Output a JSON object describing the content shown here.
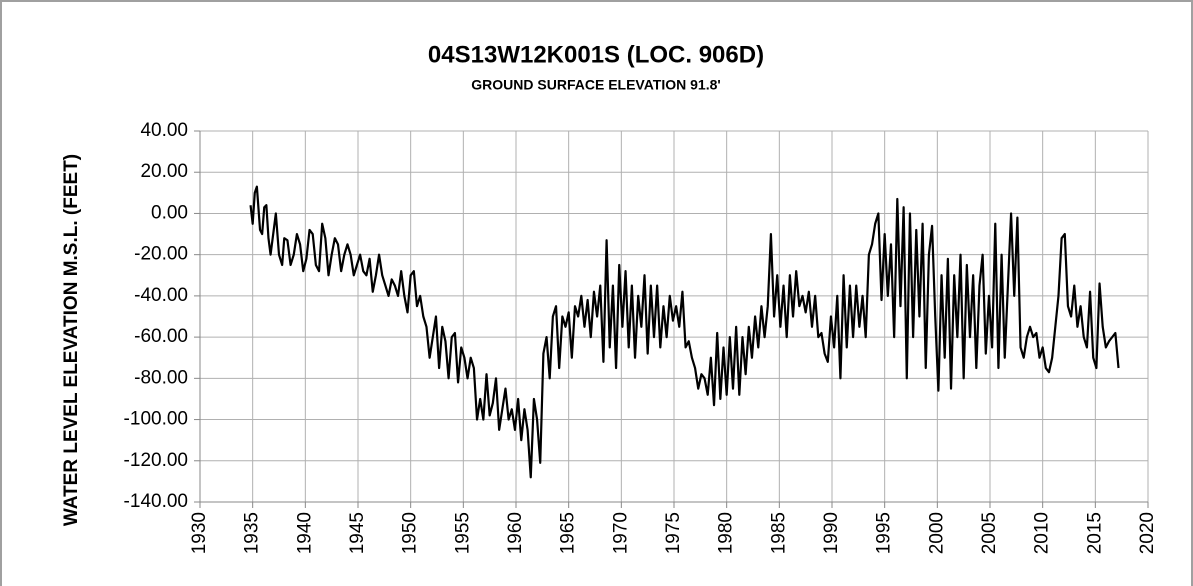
{
  "chart_data": {
    "type": "line",
    "title": "04S13W12K001S (LOC. 906D)",
    "subtitle": "GROUND SURFACE ELEVATION 91.8'",
    "y_label": "WATER LEVEL ELEVATION M.S.L. (FEET)",
    "color": "#000000",
    "grid": true,
    "xlim": [
      1930,
      2020
    ],
    "xticks": [
      1930,
      1935,
      1940,
      1945,
      1950,
      1955,
      1960,
      1965,
      1970,
      1975,
      1980,
      1985,
      1990,
      1995,
      2000,
      2005,
      2010,
      2015,
      2020
    ],
    "ylim": [
      -140,
      40
    ],
    "yticks": [
      {
        "value": -140,
        "label": "-140.00"
      },
      {
        "value": -120,
        "label": "-120.00"
      },
      {
        "value": -100,
        "label": "-100.00"
      },
      {
        "value": -80,
        "label": "-80.00"
      },
      {
        "value": -60,
        "label": "-60.00"
      },
      {
        "value": -40,
        "label": "-40.00"
      },
      {
        "value": -20,
        "label": "-20.00"
      },
      {
        "value": 0,
        "label": "0.00"
      },
      {
        "value": 20,
        "label": "20.00"
      },
      {
        "value": 40,
        "label": "40.00"
      }
    ],
    "x": [
      1934.8,
      1935.0,
      1935.2,
      1935.4,
      1935.7,
      1935.9,
      1936.1,
      1936.3,
      1936.5,
      1936.7,
      1937.0,
      1937.2,
      1937.5,
      1937.8,
      1938.0,
      1938.3,
      1938.6,
      1938.9,
      1939.2,
      1939.5,
      1939.8,
      1940.1,
      1940.4,
      1940.7,
      1941.0,
      1941.3,
      1941.6,
      1941.9,
      1942.2,
      1942.5,
      1942.8,
      1943.1,
      1943.4,
      1943.7,
      1944.0,
      1944.3,
      1944.6,
      1944.9,
      1945.2,
      1945.5,
      1945.8,
      1946.1,
      1946.4,
      1946.7,
      1947.0,
      1947.3,
      1947.6,
      1947.9,
      1948.2,
      1948.5,
      1948.8,
      1949.1,
      1949.4,
      1949.7,
      1950.0,
      1950.3,
      1950.6,
      1950.9,
      1951.2,
      1951.5,
      1951.8,
      1952.1,
      1952.4,
      1952.7,
      1953.0,
      1953.3,
      1953.6,
      1953.9,
      1954.2,
      1954.5,
      1954.8,
      1955.1,
      1955.4,
      1955.7,
      1956.0,
      1956.3,
      1956.6,
      1956.9,
      1957.2,
      1957.5,
      1957.8,
      1958.1,
      1958.4,
      1958.7,
      1959.0,
      1959.3,
      1959.6,
      1959.9,
      1960.2,
      1960.5,
      1960.8,
      1961.1,
      1961.4,
      1961.7,
      1962.0,
      1962.3,
      1962.6,
      1962.9,
      1963.2,
      1963.5,
      1963.8,
      1964.1,
      1964.4,
      1964.7,
      1965.0,
      1965.3,
      1965.6,
      1965.9,
      1966.2,
      1966.5,
      1966.8,
      1967.1,
      1967.4,
      1967.7,
      1968.0,
      1968.3,
      1968.6,
      1968.9,
      1969.2,
      1969.5,
      1969.8,
      1970.1,
      1970.4,
      1970.7,
      1971.0,
      1971.3,
      1971.6,
      1971.9,
      1972.2,
      1972.5,
      1972.8,
      1973.1,
      1973.4,
      1973.7,
      1974.0,
      1974.3,
      1974.6,
      1974.9,
      1975.2,
      1975.5,
      1975.8,
      1976.1,
      1976.4,
      1976.7,
      1977.0,
      1977.3,
      1977.6,
      1977.9,
      1978.2,
      1978.5,
      1978.8,
      1979.1,
      1979.4,
      1979.7,
      1980.0,
      1980.3,
      1980.6,
      1980.9,
      1981.2,
      1981.5,
      1981.8,
      1982.1,
      1982.4,
      1982.7,
      1983.0,
      1983.3,
      1983.6,
      1983.9,
      1984.2,
      1984.5,
      1984.8,
      1985.1,
      1985.4,
      1985.7,
      1986.0,
      1986.3,
      1986.6,
      1986.9,
      1987.2,
      1987.5,
      1987.8,
      1988.1,
      1988.4,
      1988.7,
      1989.0,
      1989.3,
      1989.6,
      1989.9,
      1990.2,
      1990.5,
      1990.8,
      1991.1,
      1991.4,
      1991.7,
      1992.0,
      1992.3,
      1992.6,
      1992.9,
      1993.2,
      1993.5,
      1993.8,
      1994.1,
      1994.4,
      1994.7,
      1995.0,
      1995.3,
      1995.6,
      1995.9,
      1996.2,
      1996.5,
      1996.8,
      1997.1,
      1997.4,
      1997.7,
      1998.0,
      1998.3,
      1998.6,
      1998.9,
      1999.2,
      1999.5,
      1999.8,
      2000.1,
      2000.4,
      2000.7,
      2001.0,
      2001.3,
      2001.6,
      2001.9,
      2002.2,
      2002.5,
      2002.8,
      2003.1,
      2003.4,
      2003.7,
      2004.0,
      2004.3,
      2004.6,
      2004.9,
      2005.2,
      2005.5,
      2005.8,
      2006.1,
      2006.4,
      2006.7,
      2007.0,
      2007.3,
      2007.6,
      2007.9,
      2008.2,
      2008.5,
      2008.8,
      2009.1,
      2009.4,
      2009.7,
      2010.0,
      2010.3,
      2010.6,
      2010.9,
      2011.2,
      2011.5,
      2011.8,
      2012.1,
      2012.4,
      2012.7,
      2013.0,
      2013.3,
      2013.6,
      2013.9,
      2014.2,
      2014.5,
      2014.8,
      2015.1,
      2015.4,
      2015.7,
      2016.0,
      2016.3,
      2016.6,
      2016.9,
      2017.2
    ],
    "values": [
      4,
      -5,
      10,
      13,
      -8,
      -10,
      3,
      4,
      -12,
      -20,
      -8,
      0,
      -20,
      -25,
      -12,
      -13,
      -25,
      -20,
      -10,
      -15,
      -28,
      -22,
      -8,
      -10,
      -25,
      -28,
      -5,
      -12,
      -30,
      -20,
      -12,
      -15,
      -28,
      -20,
      -15,
      -20,
      -30,
      -25,
      -20,
      -28,
      -30,
      -22,
      -38,
      -30,
      -20,
      -30,
      -35,
      -40,
      -32,
      -35,
      -40,
      -28,
      -40,
      -48,
      -30,
      -28,
      -45,
      -40,
      -50,
      -55,
      -70,
      -60,
      -50,
      -75,
      -55,
      -62,
      -80,
      -60,
      -58,
      -82,
      -65,
      -70,
      -80,
      -70,
      -75,
      -100,
      -90,
      -100,
      -78,
      -98,
      -92,
      -80,
      -105,
      -95,
      -85,
      -100,
      -95,
      -105,
      -90,
      -110,
      -95,
      -105,
      -128,
      -90,
      -100,
      -121,
      -68,
      -60,
      -80,
      -50,
      -45,
      -75,
      -50,
      -55,
      -48,
      -70,
      -45,
      -50,
      -40,
      -55,
      -42,
      -60,
      -38,
      -50,
      -35,
      -72,
      -13,
      -65,
      -35,
      -75,
      -25,
      -55,
      -28,
      -65,
      -35,
      -70,
      -40,
      -55,
      -30,
      -68,
      -35,
      -60,
      -35,
      -65,
      -45,
      -60,
      -40,
      -52,
      -45,
      -55,
      -38,
      -65,
      -62,
      -70,
      -75,
      -85,
      -78,
      -80,
      -88,
      -70,
      -93,
      -58,
      -90,
      -65,
      -88,
      -60,
      -85,
      -55,
      -88,
      -60,
      -78,
      -55,
      -70,
      -50,
      -65,
      -45,
      -60,
      -45,
      -10,
      -50,
      -30,
      -55,
      -35,
      -60,
      -30,
      -50,
      -28,
      -45,
      -40,
      -48,
      -38,
      -55,
      -40,
      -60,
      -58,
      -68,
      -72,
      -50,
      -65,
      -40,
      -80,
      -30,
      -65,
      -35,
      -60,
      -35,
      -55,
      -40,
      -60,
      -20,
      -15,
      -5,
      0,
      -42,
      -10,
      -40,
      -15,
      -60,
      7,
      -45,
      3,
      -80,
      0,
      -60,
      -8,
      -50,
      -5,
      -75,
      -20,
      -6,
      -50,
      -86,
      -30,
      -70,
      -22,
      -85,
      -30,
      -60,
      -20,
      -80,
      -25,
      -60,
      -30,
      -75,
      -35,
      -20,
      -68,
      -40,
      -65,
      -5,
      -75,
      -20,
      -70,
      -35,
      0,
      -40,
      -2,
      -65,
      -70,
      -60,
      -55,
      -60,
      -58,
      -70,
      -65,
      -75,
      -77,
      -70,
      -55,
      -40,
      -12,
      -10,
      -45,
      -50,
      -35,
      -55,
      -45,
      -60,
      -65,
      -38,
      -70,
      -75,
      -34,
      -55,
      -65,
      -62,
      -60,
      -58,
      -75
    ]
  }
}
